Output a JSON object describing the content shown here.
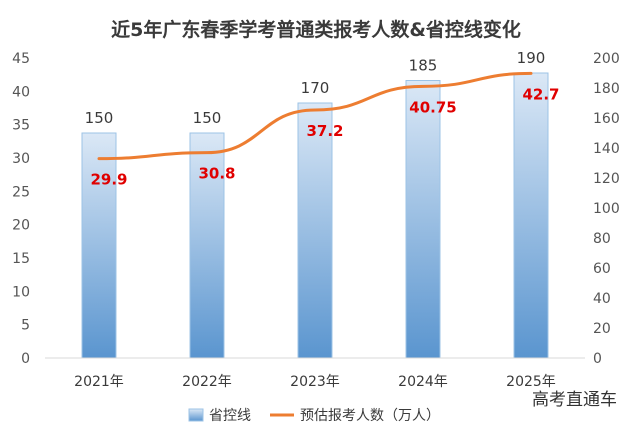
{
  "chart_data": {
    "type": "bar",
    "title": "近5年广东春季学考普通类报考人数&省控线变化",
    "categories": [
      "2021年",
      "2022年",
      "2023年",
      "2024年",
      "2025年"
    ],
    "series": [
      {
        "name": "省控线",
        "type": "bar",
        "axis": "right",
        "values": [
          150,
          150,
          170,
          185,
          190
        ],
        "color": "#5b9bd5"
      },
      {
        "name": "预估报考人数（万人）",
        "type": "line",
        "axis": "left",
        "values": [
          29.9,
          30.8,
          37.2,
          40.75,
          42.7
        ],
        "color": "#ed7d31"
      }
    ],
    "y_left": {
      "min": 0,
      "max": 45,
      "step": 5
    },
    "y_right": {
      "min": 0,
      "max": 200,
      "step": 20
    },
    "legend": "bottom",
    "grid": false
  },
  "watermark": {
    "text": "高考直通车"
  }
}
